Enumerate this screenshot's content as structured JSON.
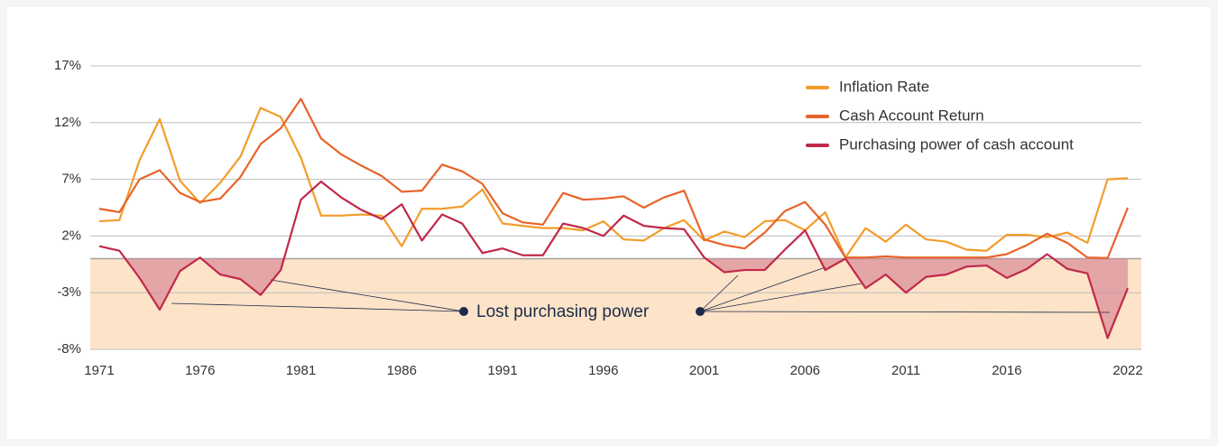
{
  "chart_data": {
    "type": "line",
    "x": [
      1971,
      1972,
      1973,
      1974,
      1975,
      1976,
      1977,
      1978,
      1979,
      1980,
      1981,
      1982,
      1983,
      1984,
      1985,
      1986,
      1987,
      1988,
      1989,
      1990,
      1991,
      1992,
      1993,
      1994,
      1995,
      1996,
      1997,
      1998,
      1999,
      2000,
      2001,
      2002,
      2003,
      2004,
      2005,
      2006,
      2007,
      2008,
      2009,
      2010,
      2011,
      2012,
      2013,
      2014,
      2015,
      2016,
      2017,
      2018,
      2019,
      2020,
      2021,
      2022
    ],
    "series": [
      {
        "name": "Inflation Rate",
        "color": "#f39c2b",
        "values": [
          3.3,
          3.4,
          8.7,
          12.3,
          6.9,
          4.9,
          6.7,
          9.0,
          13.3,
          12.5,
          8.9,
          3.8,
          3.8,
          3.9,
          3.8,
          1.1,
          4.4,
          4.4,
          4.6,
          6.1,
          3.1,
          2.9,
          2.7,
          2.7,
          2.5,
          3.3,
          1.7,
          1.6,
          2.7,
          3.4,
          1.6,
          2.4,
          1.9,
          3.3,
          3.4,
          2.5,
          4.1,
          0.1,
          2.7,
          1.5,
          3.0,
          1.7,
          1.5,
          0.8,
          0.7,
          2.1,
          2.1,
          1.9,
          2.3,
          1.4,
          7.0,
          7.1
        ]
      },
      {
        "name": "Cash Account Return",
        "color": "#e8632a",
        "values": [
          4.4,
          4.1,
          7.0,
          7.8,
          5.8,
          5.0,
          5.3,
          7.2,
          10.1,
          11.5,
          14.1,
          10.6,
          9.2,
          8.2,
          7.3,
          5.9,
          6.0,
          8.3,
          7.7,
          6.6,
          4.0,
          3.2,
          3.0,
          5.8,
          5.2,
          5.3,
          5.5,
          4.5,
          5.4,
          6.0,
          1.7,
          1.2,
          0.9,
          2.3,
          4.2,
          5.0,
          3.0,
          0.1,
          0.1,
          0.2,
          0.1,
          0.1,
          0.1,
          0.1,
          0.1,
          0.4,
          1.2,
          2.2,
          1.4,
          0.1,
          0.05,
          4.5
        ]
      },
      {
        "name": "Purchasing power of cash account",
        "color": "#c0294a",
        "values": [
          1.1,
          0.7,
          -1.7,
          -4.5,
          -1.1,
          0.1,
          -1.4,
          -1.8,
          -3.2,
          -1.0,
          5.2,
          6.8,
          5.4,
          4.3,
          3.5,
          4.8,
          1.6,
          3.9,
          3.1,
          0.5,
          0.9,
          0.3,
          0.3,
          3.1,
          2.7,
          2.0,
          3.8,
          2.9,
          2.7,
          2.6,
          0.1,
          -1.2,
          -1.0,
          -1.0,
          0.8,
          2.5,
          -1.0,
          0.0,
          -2.6,
          -1.4,
          -3.0,
          -1.6,
          -1.4,
          -0.7,
          -0.6,
          -1.7,
          -0.9,
          0.4,
          -0.9,
          -1.3,
          -7.0,
          -2.6
        ]
      }
    ],
    "xlim": [
      1971,
      2022
    ],
    "xticks": [
      1971,
      1976,
      1981,
      1986,
      1991,
      1996,
      2001,
      2006,
      2011,
      2016,
      2022
    ],
    "ylim": [
      -8,
      17
    ],
    "yticks": [
      {
        "value": -8,
        "label": "-8%"
      },
      {
        "value": -3,
        "label": "-3%"
      },
      {
        "value": 2,
        "label": "2%"
      },
      {
        "value": 7,
        "label": "7%"
      },
      {
        "value": 12,
        "label": "12%"
      },
      {
        "value": 17,
        "label": "17%"
      }
    ],
    "grid": true,
    "legend": "upper right",
    "annotation": "Lost purchasing power"
  }
}
